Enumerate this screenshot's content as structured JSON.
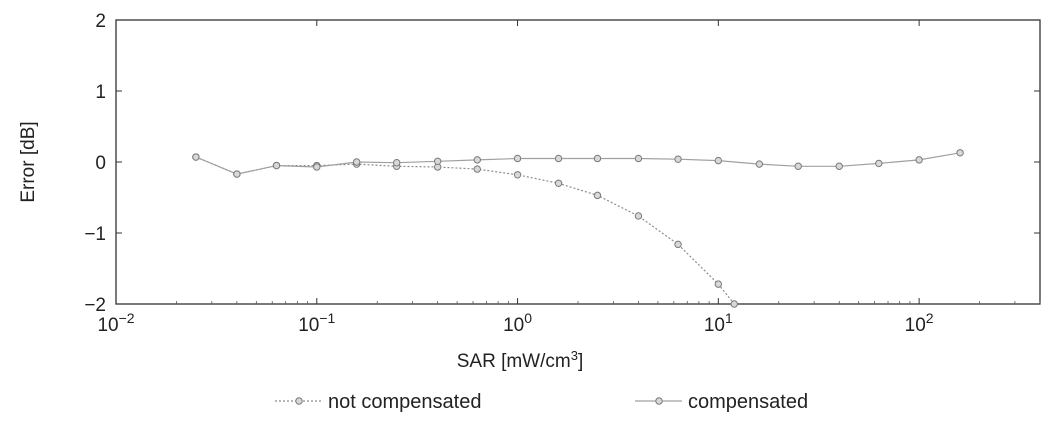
{
  "chart_data": {
    "type": "line",
    "xscale": "log",
    "xlabel": "SAR [mW/cm",
    "xlabel_sup": "3",
    "xlabel_suffix": "]",
    "ylabel": "Error [dB]",
    "xlim": [
      0.01,
      400
    ],
    "ylim": [
      -2,
      2
    ],
    "grid": false,
    "legend_position": "bottom",
    "x_ticks": [
      {
        "value": 0.01,
        "base": "10",
        "exp": "−2"
      },
      {
        "value": 0.1,
        "base": "10",
        "exp": "−1"
      },
      {
        "value": 1,
        "base": "10",
        "exp": "0"
      },
      {
        "value": 10,
        "base": "10",
        "exp": "1"
      },
      {
        "value": 100,
        "base": "10",
        "exp": "2"
      }
    ],
    "y_ticks": [
      {
        "value": 2,
        "label": "2"
      },
      {
        "value": 1,
        "label": "1"
      },
      {
        "value": 0,
        "label": "0"
      },
      {
        "value": -1,
        "label": "−1"
      },
      {
        "value": -2,
        "label": "−2"
      }
    ],
    "series": [
      {
        "name": "not compensated",
        "color": "#8c8c8c",
        "marker": "circle",
        "points": [
          [
            0.025,
            0.07
          ],
          [
            0.04,
            -0.17
          ],
          [
            0.063,
            -0.05
          ],
          [
            0.1,
            -0.05
          ],
          [
            0.158,
            -0.03
          ],
          [
            0.25,
            -0.06
          ],
          [
            0.4,
            -0.07
          ],
          [
            0.63,
            -0.1
          ],
          [
            1.0,
            -0.18
          ],
          [
            1.6,
            -0.3
          ],
          [
            2.5,
            -0.47
          ],
          [
            4.0,
            -0.76
          ],
          [
            6.3,
            -1.16
          ],
          [
            10.0,
            -1.72
          ],
          [
            12.0,
            -2.0
          ]
        ]
      },
      {
        "name": "compensated",
        "color": "#a0a0a0",
        "marker": "circle",
        "points": [
          [
            0.025,
            0.07
          ],
          [
            0.04,
            -0.17
          ],
          [
            0.063,
            -0.05
          ],
          [
            0.1,
            -0.07
          ],
          [
            0.158,
            0.0
          ],
          [
            0.25,
            -0.01
          ],
          [
            0.4,
            0.01
          ],
          [
            0.63,
            0.03
          ],
          [
            1.0,
            0.05
          ],
          [
            1.6,
            0.05
          ],
          [
            2.5,
            0.05
          ],
          [
            4.0,
            0.05
          ],
          [
            6.3,
            0.04
          ],
          [
            10.0,
            0.02
          ],
          [
            16.0,
            -0.03
          ],
          [
            25.0,
            -0.06
          ],
          [
            40.0,
            -0.06
          ],
          [
            63.0,
            -0.02
          ],
          [
            100.0,
            0.03
          ],
          [
            160.0,
            0.13
          ]
        ]
      }
    ]
  }
}
